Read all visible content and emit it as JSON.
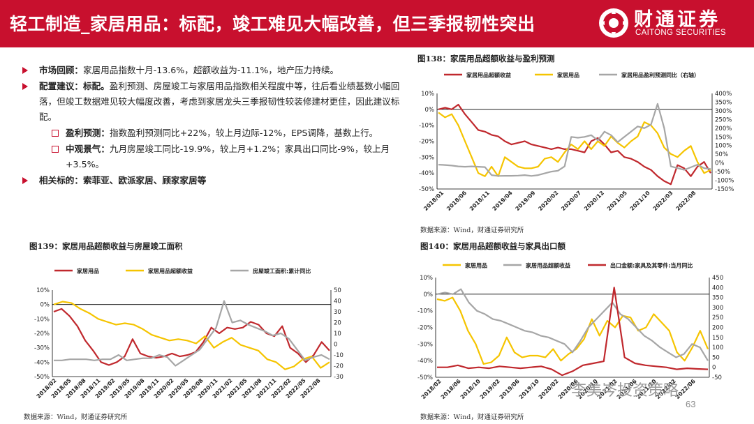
{
  "header": {
    "title": "轻工制造_家居用品：标配，竣工难见大幅改善，但三季报韧性突出",
    "logo_cn": "财通证券",
    "logo_en": "CAITONG SECURITIES"
  },
  "bullets": {
    "b1_label": "市场回顾：",
    "b1_text": "家居用品指数十月-13.6%，超额收益为-11.1%，地产压力持续。",
    "b2_label": "配置建议：标配。",
    "b2_text": "盈利预测、房屋竣工与家居用品指数相关程度中等，往后看业绩基数小幅回落，但竣工数据难见较大幅度改善，考虑到家居龙头三季报韧性较装修建材更佳，因此建议标配。",
    "s1_label": "盈利预测：",
    "s1_text": "指数盈利预测同比+22%，较上月边际-12%，EPS调降，基数上行。",
    "s2_label": "中观景气：",
    "s2_text": "九月房屋竣工同比-19.9%，较上月+1.2%；家具出口同比-9%，较上月+3.5%。",
    "b3_label": "相关标的：索菲亚、欧派家居、顾家家居等"
  },
  "footer": {
    "page": "63",
    "watermark": "李美岑投资策略"
  },
  "colors": {
    "red": "#c8102e",
    "line_red": "#c0282d",
    "yellow": "#f5c400",
    "gray": "#a6a6a6"
  },
  "charts": [
    {
      "fig_title": "图138：家居用品超额收益与盈利预测",
      "source": "数据来源：Wind，财通证券研究所",
      "legend": [
        "家居用品超额收益",
        "家居用品",
        "家居用品盈利预测同比（右轴）"
      ],
      "left_ticks": [
        "10%",
        "0%",
        "-10%",
        "-20%",
        "-30%",
        "-40%",
        "-50%"
      ],
      "right_ticks": [
        "400%",
        "350%",
        "300%",
        "250%",
        "200%",
        "150%",
        "100%",
        "50%",
        "0%",
        "-50%",
        "-100%",
        "-150%"
      ],
      "x_ticks": [
        "2018/01",
        "2018/06",
        "2018/11",
        "2019/04",
        "2019/09",
        "2020/02",
        "2020/07",
        "2020/12",
        "2021/05",
        "2021/10",
        "2022/03",
        "2022/08"
      ]
    },
    {
      "fig_title": "图139：家居用品超额收益与房屋竣工面积",
      "source": "数据来源：Wind，财通证券研究所",
      "legend": [
        "家居用品",
        "家居用品超额收益",
        "房屋竣工面积:累计同比"
      ],
      "left_ticks": [
        "10%",
        "0%",
        "-10%",
        "-20%",
        "-30%",
        "-40%",
        "-50%"
      ],
      "right_ticks": [
        "50",
        "40",
        "30",
        "20",
        "10",
        "0",
        "-10",
        "-20",
        "-30"
      ],
      "x_ticks": [
        "2018/02",
        "2018/05",
        "2018/08",
        "2018/11",
        "2019/02",
        "2019/05",
        "2019/08",
        "2019/11",
        "2020/02",
        "2020/05",
        "2020/08",
        "2020/11",
        "2021/02",
        "2021/05",
        "2021/08",
        "2021/11",
        "2022/02",
        "2022/05",
        "2022/08"
      ]
    },
    {
      "fig_title": "图140：家居用品超额收益与家具出口额",
      "source": "数据来源：Wind，财通证券研究所",
      "legend": [
        "家居用品",
        "家居用品超额收益",
        "出口金额:家具及其零件:当月同比"
      ],
      "left_ticks": [
        "10%",
        "0%",
        "-10%",
        "-20%",
        "-30%",
        "-40%",
        "-50%"
      ],
      "right_ticks": [
        "450",
        "400",
        "350",
        "300",
        "250",
        "200",
        "150",
        "100",
        "50",
        "0",
        "-50"
      ],
      "x_ticks": [
        "2018/02",
        "2018/06",
        "2018/10",
        "2019/02",
        "2019/06",
        "2019/10",
        "2020/02",
        "2020/06",
        "2020/10",
        "2021/02",
        "2021/06",
        "2021/10",
        "2022/02",
        "2022/06"
      ]
    }
  ],
  "chart_data": [
    {
      "type": "line",
      "title": "图138：家居用品超额收益与盈利预测",
      "x_range": [
        "2018/01",
        "2022/10"
      ],
      "ylim_left": [
        -50,
        10
      ],
      "ylim_right": [
        -150,
        400
      ],
      "series": [
        {
          "name": "家居用品超额收益",
          "axis": "left",
          "values": [
            0,
            1,
            0,
            3,
            -3,
            -8,
            -13,
            -14,
            -16,
            -17,
            -20,
            -22,
            -21,
            -20,
            -22,
            -23,
            -24,
            -25,
            -24,
            -25,
            -25,
            -26,
            -27,
            -20,
            -18,
            -22,
            -27,
            -26,
            -30,
            -31,
            -33,
            -36,
            -38,
            -42,
            -45,
            -47,
            -35,
            -37,
            -42,
            -36,
            -33,
            -40
          ]
        },
        {
          "name": "家居用品",
          "axis": "left",
          "values": [
            -2,
            -5,
            -3,
            -10,
            -20,
            -30,
            -40,
            -42,
            -36,
            -42,
            -30,
            -33,
            -36,
            -37,
            -37,
            -36,
            -31,
            -30,
            -33,
            -27,
            -22,
            -25,
            -20,
            -25,
            -20,
            -23,
            -17,
            -21,
            -24,
            -20,
            -17,
            -8,
            -10,
            -15,
            -24,
            -28,
            -30,
            -26,
            -23,
            -33,
            -40,
            -38
          ]
        },
        {
          "name": "家居用品盈利预测同比（右轴）",
          "axis": "right",
          "values": [
            -10,
            -12,
            -15,
            -20,
            -22,
            -20,
            -22,
            -24,
            -70,
            -75,
            -74,
            -74,
            -73,
            -70,
            -75,
            -70,
            -60,
            -50,
            -45,
            -20,
            150,
            145,
            150,
            160,
            130,
            180,
            160,
            120,
            150,
            180,
            210,
            200,
            220,
            340,
            200,
            -20,
            -30,
            -40,
            -25,
            -10,
            -30,
            -35
          ]
        }
      ]
    },
    {
      "type": "line",
      "title": "图139：家居用品超额收益与房屋竣工面积",
      "x_range": [
        "2018/02",
        "2022/09"
      ],
      "ylim_left": [
        -50,
        10
      ],
      "ylim_right": [
        -30,
        50
      ],
      "series": [
        {
          "name": "家居用品",
          "axis": "left",
          "values": [
            -5,
            -3,
            -8,
            -15,
            -25,
            -32,
            -40,
            -42,
            -40,
            -36,
            -24,
            -34,
            -36,
            -37,
            -36,
            -34,
            -36,
            -35,
            -33,
            -26,
            -16,
            -20,
            -16,
            -17,
            -16,
            -12,
            -14,
            -20,
            -22,
            -15,
            -30,
            -34,
            -40,
            -35,
            -26,
            -32
          ]
        },
        {
          "name": "家居用品超额收益",
          "axis": "left",
          "values": [
            0,
            2,
            1,
            -3,
            -6,
            -10,
            -12,
            -14,
            -13,
            -14,
            -17,
            -21,
            -23,
            -25,
            -24,
            -25,
            -27,
            -22,
            -30,
            -26,
            -23,
            -28,
            -30,
            -32,
            -38,
            -40,
            -45,
            -43,
            -38,
            -36,
            -44,
            -40
          ]
        },
        {
          "name": "房屋竣工面积:累计同比",
          "axis": "right",
          "values": [
            -15,
            -15,
            -14,
            -14,
            -14,
            -15,
            -14,
            -14,
            -10,
            -15,
            -14,
            -13,
            -13,
            -10,
            -12,
            -20,
            -15,
            -10,
            -5,
            5,
            15,
            40,
            20,
            22,
            18,
            15,
            12,
            8,
            10,
            5,
            -5,
            -15,
            -12,
            -10,
            -14
          ]
        }
      ]
    },
    {
      "type": "line",
      "title": "图140：家居用品超额收益与家具出口额",
      "x_range": [
        "2018/02",
        "2022/09"
      ],
      "ylim_left": [
        -50,
        10
      ],
      "ylim_right": [
        -50,
        450
      ],
      "series": [
        {
          "name": "家居用品",
          "axis": "left",
          "values": [
            -3,
            -4,
            -2,
            -10,
            -22,
            -30,
            -42,
            -41,
            -37,
            -26,
            -35,
            -38,
            -37,
            -37,
            -38,
            -33,
            -40,
            -36,
            -33,
            -27,
            -15,
            -25,
            -16,
            -20,
            -13,
            -14,
            -22,
            -20,
            -12,
            -17,
            -22,
            -35,
            -40,
            -32,
            -22,
            -33
          ]
        },
        {
          "name": "家居用品超额收益",
          "axis": "left",
          "values": [
            0,
            1,
            0,
            3,
            -5,
            -10,
            -12,
            -15,
            -16,
            -18,
            -20,
            -22,
            -23,
            -25,
            -26,
            -28,
            -30,
            -35,
            -28,
            -20,
            -15,
            -10,
            -5,
            -12,
            -15,
            -20,
            -25,
            -28,
            -32,
            -35,
            -38,
            -36,
            -30,
            -32,
            -40
          ]
        },
        {
          "name": "出口金额:家具及其零件:当月同比",
          "axis": "right",
          "values": [
            0,
            0,
            10,
            -5,
            0,
            -5,
            5,
            0,
            -5,
            0,
            5,
            -10,
            -40,
            -20,
            10,
            20,
            30,
            400,
            50,
            20,
            10,
            5,
            0,
            -10,
            -5,
            -8,
            -10
          ]
        }
      ]
    }
  ]
}
